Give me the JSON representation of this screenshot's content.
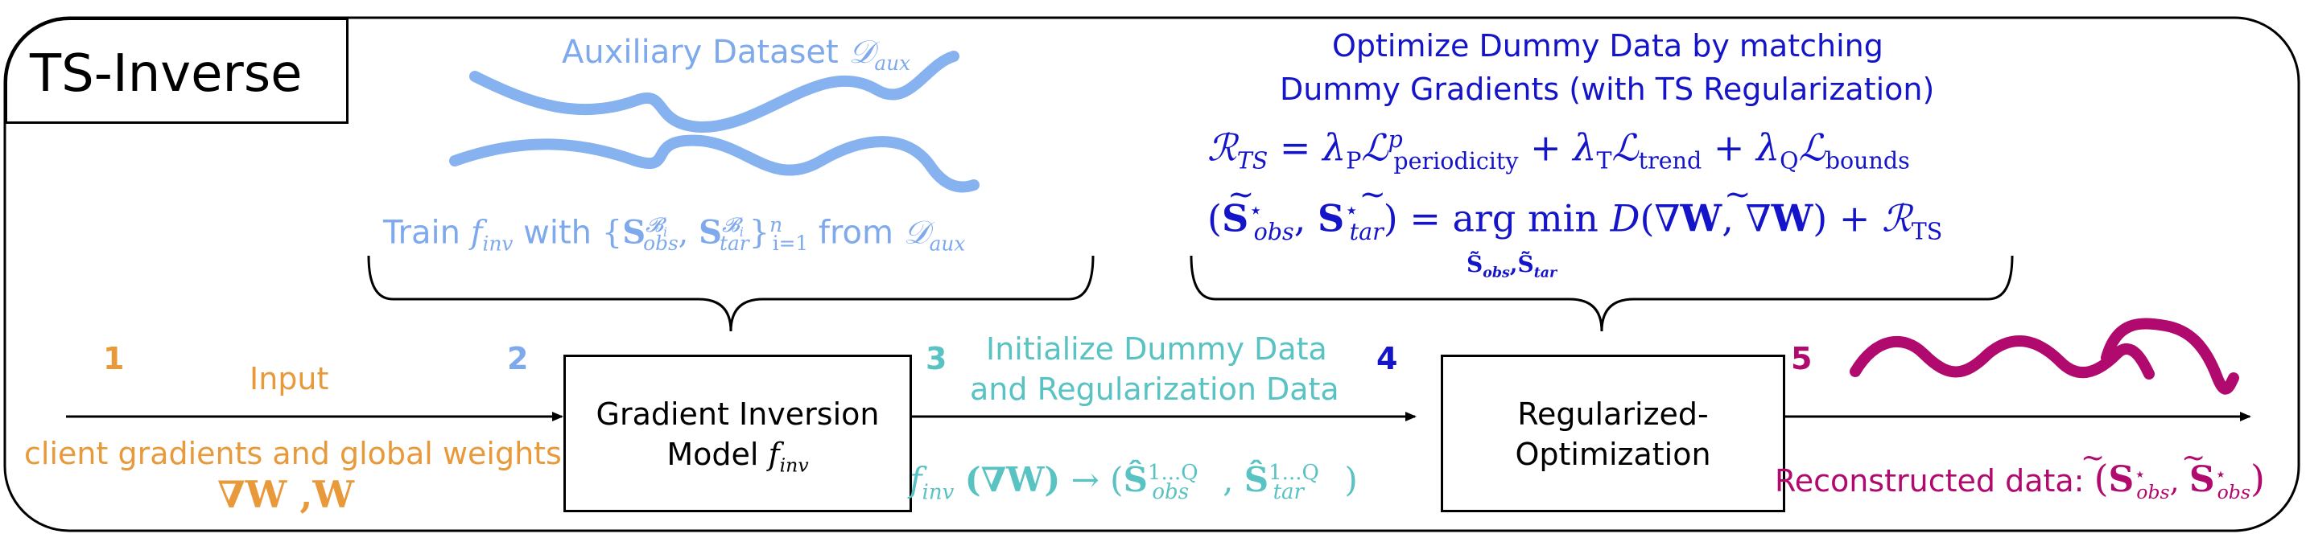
{
  "title": "TS-Inverse",
  "aux_dataset_label": "Auxiliary Dataset",
  "aux_dataset_symbol": "𝒟",
  "aux_dataset_sub": "aux",
  "train_label": {
    "prefix": "Train",
    "model": "f",
    "model_sub": "inv",
    "with": "with",
    "set_open": "{",
    "S": "S",
    "B": "𝓑",
    "Bsub": "i",
    "obs": "obs",
    "tar": "tar",
    "comma": ",",
    "set_close": "}",
    "range": "i=1",
    "n": "n",
    "from": "from",
    "D": "𝒟",
    "aux": "aux"
  },
  "optimize_heading": {
    "line1": "Optimize Dummy Data by matching",
    "line2": "Dummy Gradients (with TS Regularization)"
  },
  "eq1": {
    "R": "ℛ",
    "R_sub": "TS",
    "eq": "=",
    "lambda": "λ",
    "P": "P",
    "T": "T",
    "Q": "Q",
    "L": "ℒ",
    "p": "p",
    "periodicity": "periodicity",
    "trend": "trend",
    "bounds": "bounds",
    "plus": "+"
  },
  "eq2": {
    "lhs_open": "(",
    "S": "S",
    "star": "⋆",
    "obs": "obs",
    "tar": "tar",
    "comma": ",",
    "lhs_close": ")",
    "eq": "=",
    "argmin": "arg min",
    "under": "S̃",
    "D": "D",
    "grad_open": "(∇",
    "W": "W",
    "grad_mid": ", ∇",
    "grad_close": ")",
    "plus": "+",
    "R": "ℛ",
    "R_sub": "TS"
  },
  "steps": [
    {
      "number": "1",
      "color": "#e8993a"
    },
    {
      "number": "2",
      "color": "#7ea9ec"
    },
    {
      "number": "3",
      "color": "#59c2c2"
    },
    {
      "number": "4",
      "color": "#1414c8"
    },
    {
      "number": "5",
      "color": "#b00a6e"
    }
  ],
  "input": {
    "label": "Input",
    "description": "client gradients and global weights",
    "formula_grad": "∇W",
    "formula_comma": ",",
    "formula_w": "W"
  },
  "gradient_inversion_box": {
    "line1": "Gradient Inversion",
    "line2": "Model",
    "f": "f",
    "inv": "inv"
  },
  "initialize": {
    "line1": "Initialize Dummy Data",
    "line2": "and Regularization Data",
    "f": "f",
    "inv": "inv",
    "grad": "(∇W)",
    "arrow": "→",
    "open": "(",
    "S": "Ŝ",
    "sup": "1...Q",
    "obs": "obs",
    "tar": "tar",
    "comma": ",",
    "close": ")"
  },
  "regularized_box": {
    "line1": "Regularized-",
    "line2": "Optimization"
  },
  "reconstructed": {
    "label": "Reconstructed data:",
    "open": "(",
    "S": "S",
    "star": "⋆",
    "sub1": "obs",
    "comma": ",",
    "sub2": "obs",
    "close": ")"
  },
  "colors": {
    "orange": "#e8993a",
    "light_blue": "#7ea9ec",
    "teal": "#59c2c2",
    "dark_blue": "#1414c8",
    "purple": "#b00a6e",
    "aux_curve": "#86b2f0"
  }
}
